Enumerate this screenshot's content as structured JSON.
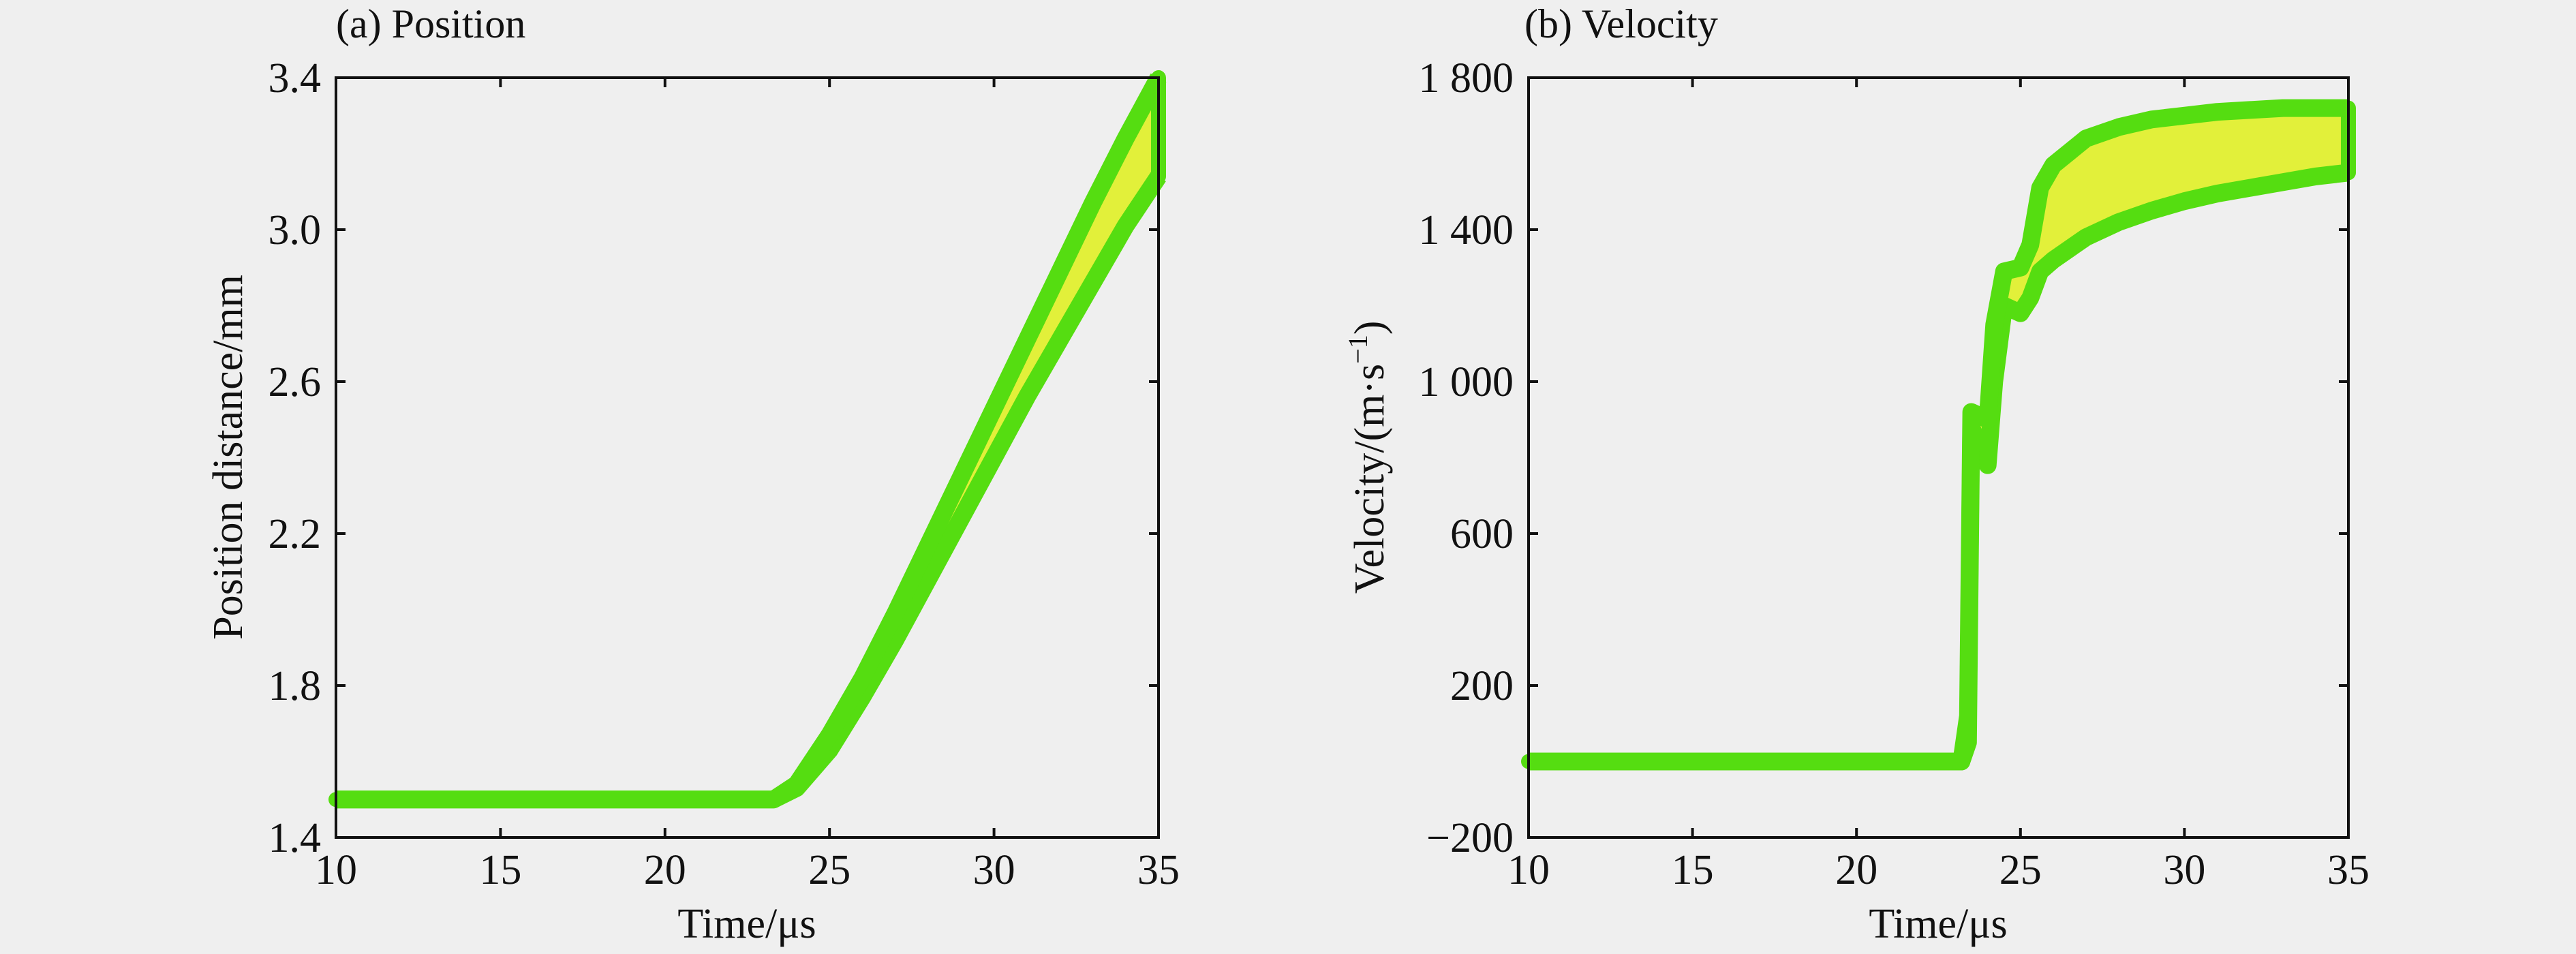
{
  "figure": {
    "colors": {
      "envelope_edge": "#55dd11",
      "envelope_fill": "#e2f03a",
      "axes": "#111111",
      "background": "#efefef"
    }
  },
  "chart_data": [
    {
      "type": "area",
      "title": "(a) Position",
      "xlabel": "Time/μs",
      "ylabel": "Position distance/mm",
      "xlim": [
        10,
        35
      ],
      "ylim": [
        1.4,
        3.4
      ],
      "xticks": [
        10,
        15,
        20,
        25,
        30,
        35
      ],
      "yticks": [
        1.4,
        1.8,
        2.2,
        2.6,
        3.0,
        3.4
      ],
      "xtick_labels": [
        "10",
        "15",
        "20",
        "25",
        "30",
        "35"
      ],
      "ytick_labels": [
        "1.4",
        "1.8",
        "2.2",
        "2.6",
        "3.0",
        "3.4"
      ],
      "grid": false,
      "series": [
        {
          "x": [
            10,
            23.3,
            24,
            25,
            26,
            27,
            28,
            29,
            30,
            31,
            32,
            33,
            34,
            35
          ],
          "values": [
            1.5,
            1.5,
            1.53,
            1.63,
            1.77,
            1.92,
            2.08,
            2.24,
            2.4,
            2.56,
            2.71,
            2.86,
            3.01,
            3.14
          ]
        },
        {
          "x": [
            10,
            23.3,
            24,
            25,
            26,
            27,
            28,
            29,
            30,
            31,
            32,
            33,
            34,
            35
          ],
          "values": [
            1.5,
            1.5,
            1.54,
            1.67,
            1.82,
            1.99,
            2.17,
            2.35,
            2.53,
            2.71,
            2.89,
            3.07,
            3.24,
            3.4
          ]
        }
      ]
    },
    {
      "type": "area",
      "title": "(b) Velocity",
      "xlabel": "Time/μs",
      "ylabel": "Velocity/(m·s",
      "ylabel_sup": "−1",
      "ylabel_close": ")",
      "xlim": [
        10,
        35
      ],
      "ylim": [
        -200,
        1800
      ],
      "xticks": [
        10,
        15,
        20,
        25,
        30,
        35
      ],
      "yticks": [
        -200,
        200,
        600,
        1000,
        1400,
        1800
      ],
      "xtick_labels": [
        "10",
        "15",
        "20",
        "25",
        "30",
        "35"
      ],
      "ytick_labels": [
        "−200",
        "200",
        "600",
        "1 000",
        "1 400",
        "1 800"
      ],
      "grid": false,
      "series": [
        {
          "x": [
            10,
            23.2,
            23.4,
            23.5,
            24.0,
            24.2,
            24.5,
            25.0,
            25.3,
            25.6,
            26.0,
            27.0,
            28.0,
            29.0,
            30.0,
            31.0,
            32.0,
            33.0,
            34.0,
            35.0
          ],
          "values": [
            0,
            0,
            50,
            880,
            780,
            1000,
            1200,
            1180,
            1220,
            1290,
            1320,
            1380,
            1420,
            1450,
            1475,
            1495,
            1510,
            1525,
            1540,
            1550
          ]
        },
        {
          "x": [
            10,
            23.2,
            23.4,
            23.5,
            24.0,
            24.2,
            24.5,
            25.0,
            25.3,
            25.6,
            26.0,
            27.0,
            28.0,
            29.0,
            30.0,
            31.0,
            32.0,
            33.0,
            34.0,
            35.0
          ],
          "values": [
            0,
            0,
            120,
            920,
            900,
            1150,
            1290,
            1300,
            1360,
            1510,
            1570,
            1640,
            1670,
            1690,
            1700,
            1710,
            1715,
            1720,
            1720,
            1720
          ]
        }
      ]
    }
  ]
}
